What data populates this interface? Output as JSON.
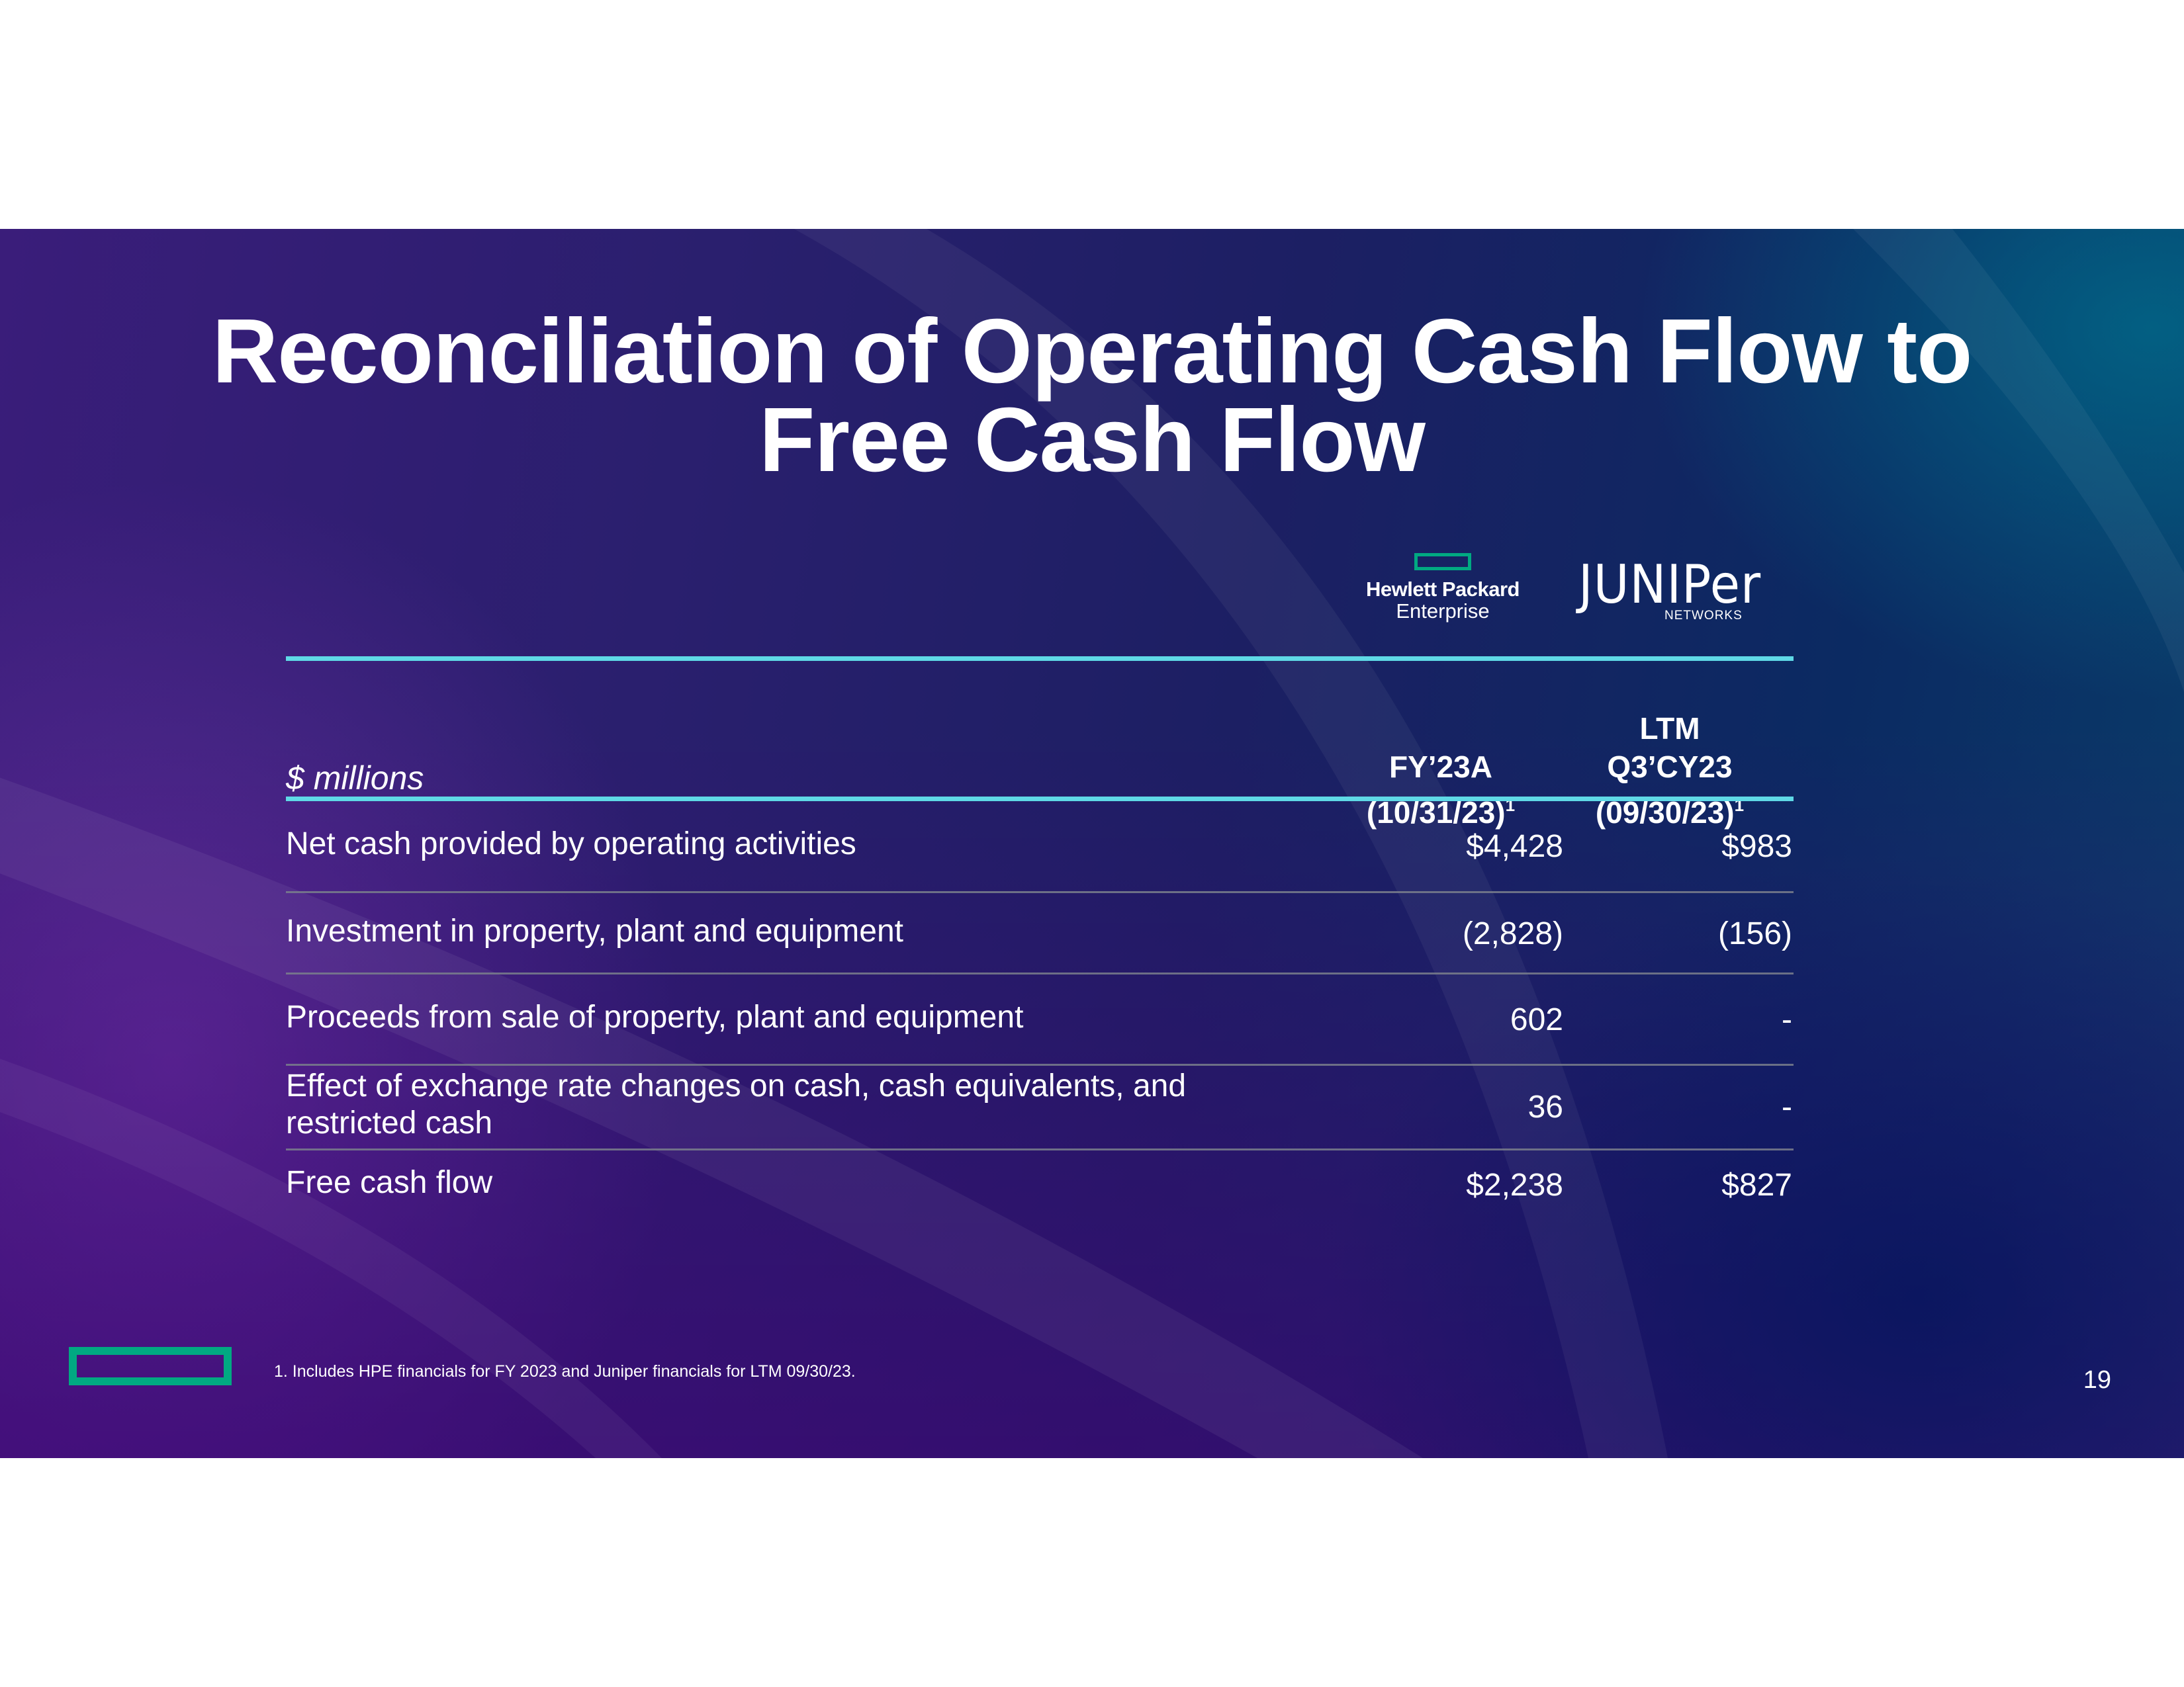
{
  "title": {
    "line1": "Reconciliation of Operating Cash Flow to",
    "line2": "Free Cash Flow"
  },
  "logos": {
    "hpe": {
      "line1": "Hewlett Packard",
      "line2": "Enterprise",
      "icon": "hpe-element-icon",
      "color": "#01a982"
    },
    "juniper": {
      "name": "JUNIPer",
      "sub": "NETWORKS"
    }
  },
  "table": {
    "units_label": "$ millions",
    "columns": [
      {
        "lines": [
          "FY’23A",
          "(10/31/23)"
        ],
        "footnote_ref": "1"
      },
      {
        "lines": [
          "LTM",
          "Q3’CY23",
          "(09/30/23)"
        ],
        "footnote_ref": "1"
      }
    ],
    "rows": [
      {
        "label": "Net cash provided by operating activities",
        "values": [
          "$4,428",
          "$983"
        ]
      },
      {
        "label": "Investment in property, plant and equipment",
        "values": [
          "(2,828)",
          "(156)"
        ]
      },
      {
        "label": "Proceeds from sale of property, plant and equipment",
        "values": [
          "602",
          "-"
        ]
      },
      {
        "label_lines": [
          "Effect of exchange rate changes on cash, cash equivalents, and",
          "restricted cash"
        ],
        "values": [
          "36",
          "-"
        ]
      },
      {
        "label": "Free cash flow",
        "values": [
          "$2,238",
          "$827"
        ]
      }
    ]
  },
  "footer": {
    "footnote": "1. Includes HPE financials for FY 2023 and Juniper financials for LTM 09/30/23.",
    "page_number": "19"
  },
  "colors": {
    "accent_teal": "#5fd9e6",
    "hpe_green": "#01a982"
  }
}
